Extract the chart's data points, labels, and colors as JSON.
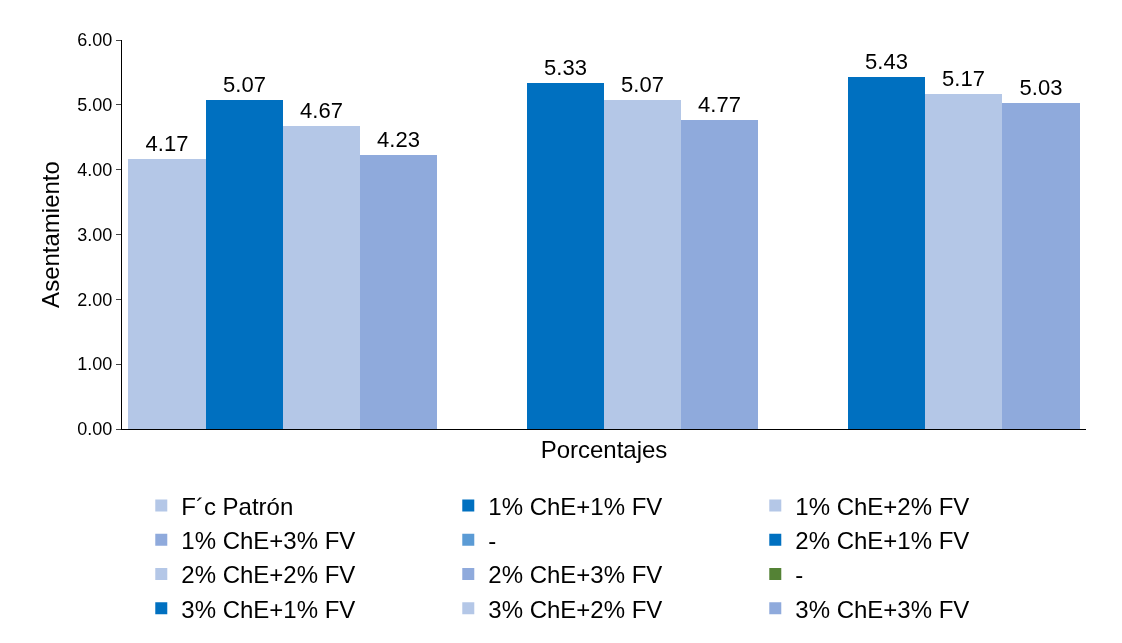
{
  "chart_data": {
    "type": "bar",
    "xlabel": "Porcentajes",
    "ylabel": "Asentamiento",
    "categories": [
      null,
      null,
      null
    ],
    "series": [
      {
        "name": "F´c Patrón",
        "color": "#b4c7e7",
        "values": [
          4.17,
          null,
          null
        ]
      },
      {
        "name": "1% ChE+1% FV",
        "color": "#0070c0",
        "values": [
          5.07,
          null,
          null
        ]
      },
      {
        "name": "1% ChE+2% FV",
        "color": "#b4c7e7",
        "values": [
          4.67,
          null,
          null
        ]
      },
      {
        "name": "1% ChE+3% FV",
        "color": "#8faadc",
        "values": [
          4.23,
          null,
          null
        ]
      },
      {
        "name": "-",
        "color": "#5b9bd5",
        "values": [
          null,
          null,
          null
        ]
      },
      {
        "name": "2% ChE+1% FV",
        "color": "#0070c0",
        "values": [
          null,
          5.33,
          null
        ]
      },
      {
        "name": "2% ChE+2% FV",
        "color": "#b4c7e7",
        "values": [
          null,
          5.07,
          null
        ]
      },
      {
        "name": "2% ChE+3% FV",
        "color": "#8faadc",
        "values": [
          null,
          4.77,
          null
        ]
      },
      {
        "name": "-",
        "color": "#548235",
        "values": [
          null,
          null,
          null
        ]
      },
      {
        "name": "3% ChE+1% FV",
        "color": "#0070c0",
        "values": [
          null,
          null,
          5.43
        ]
      },
      {
        "name": "3% ChE+2% FV",
        "color": "#b4c7e7",
        "values": [
          null,
          null,
          5.17
        ]
      },
      {
        "name": "3% ChE+3% FV",
        "color": "#8faadc",
        "values": [
          null,
          null,
          5.03
        ]
      }
    ],
    "ylim": [
      0,
      6
    ],
    "yticks": [
      {
        "value": 0,
        "label": "0.00"
      },
      {
        "value": 1,
        "label": "1.00"
      },
      {
        "value": 2,
        "label": "2.00"
      },
      {
        "value": 3,
        "label": "3.00"
      },
      {
        "value": 4,
        "label": "4.00"
      },
      {
        "value": 5,
        "label": "5.00"
      },
      {
        "value": 6,
        "label": "6.00"
      }
    ],
    "tick_labels": "y",
    "grid": false,
    "legend": "bottom",
    "data_labels": true
  }
}
